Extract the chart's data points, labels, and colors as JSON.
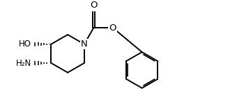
{
  "bg_color": "#ffffff",
  "line_color": "#000000",
  "lw": 1.4,
  "fs": 8.5,
  "figsize": [
    3.4,
    1.4
  ],
  "dpi": 100,
  "xlim": [
    0.0,
    3.4
  ],
  "ylim": [
    0.0,
    1.4
  ]
}
